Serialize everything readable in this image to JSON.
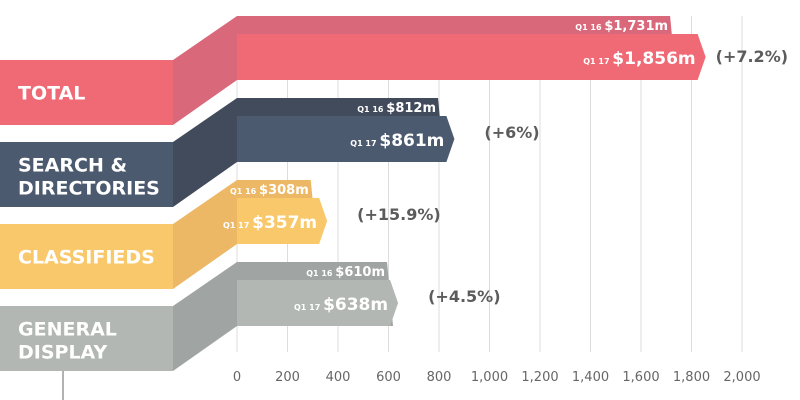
{
  "chart_data": {
    "type": "bar",
    "orientation": "horizontal",
    "title": "",
    "xlabel": "",
    "ylabel": "",
    "xlim": [
      0,
      2000
    ],
    "x_ticks": [
      "0",
      "200",
      "400",
      "600",
      "800",
      "1,000",
      "1,200",
      "1,400",
      "1,600",
      "1,800",
      "2,000"
    ],
    "grid": true,
    "categories": [
      "TOTAL",
      "SEARCH & DIRECTORIES",
      "CLASSIFIEDS",
      "GENERAL DISPLAY"
    ],
    "category_lines": [
      [
        "TOTAL"
      ],
      [
        "SEARCH &",
        "DIRECTORIES"
      ],
      [
        "CLASSIFIEDS"
      ],
      [
        "GENERAL",
        "DISPLAY"
      ]
    ],
    "series": [
      {
        "name": "Q1 16",
        "values": [
          1731,
          812,
          308,
          610
        ],
        "labels": [
          "$1,731m",
          "$812m",
          "$308m",
          "$610m"
        ]
      },
      {
        "name": "Q1 17",
        "values": [
          1856,
          861,
          357,
          638
        ],
        "labels": [
          "$1,856m",
          "$861m",
          "$357m",
          "$638m"
        ]
      }
    ],
    "changes": [
      "(+7.2%)",
      "(+6%)",
      "(+15.9%)",
      "(+4.5%)"
    ],
    "colors": {
      "main": [
        "#f06a75",
        "#4c5a70",
        "#f9c86b",
        "#b2b7b4"
      ],
      "dark": [
        "#d9687a",
        "#414b5b",
        "#edb866",
        "#a0a5a3"
      ]
    }
  }
}
